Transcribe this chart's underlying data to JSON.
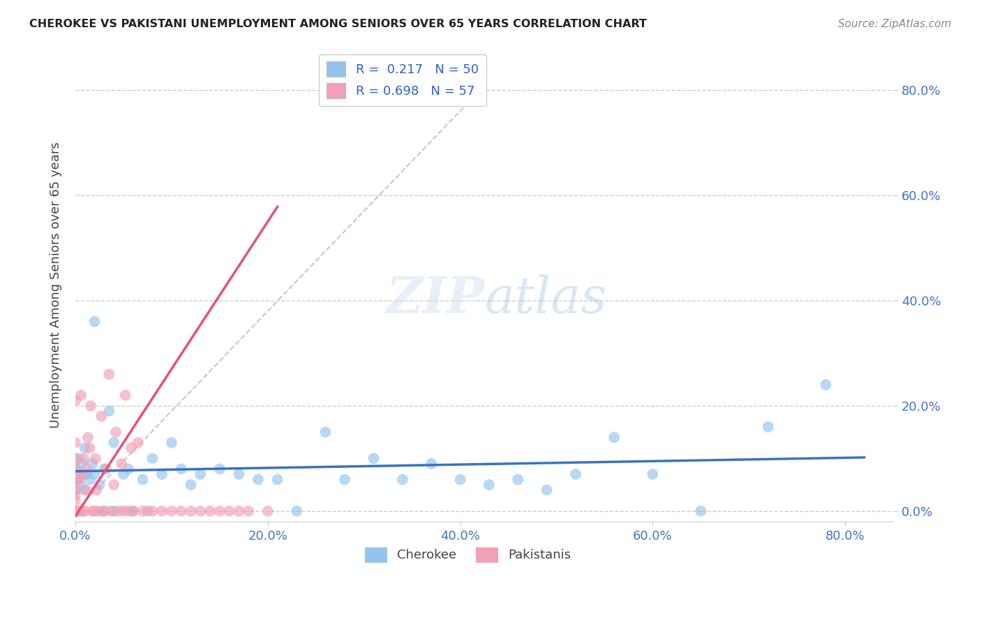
{
  "title": "CHEROKEE VS PAKISTANI UNEMPLOYMENT AMONG SENIORS OVER 65 YEARS CORRELATION CHART",
  "source": "Source: ZipAtlas.com",
  "ylabel": "Unemployment Among Seniors over 65 years",
  "xlim": [
    0.0,
    0.85
  ],
  "ylim": [
    -0.02,
    0.88
  ],
  "cherokee_color": "#93C4EE",
  "pakistani_color": "#F2A0B5",
  "cherokee_trend_color": "#3A72C4",
  "pakistani_trend_color": "#E8507A",
  "ref_line_color": "#C0C0C0",
  "cherokee_R": 0.217,
  "cherokee_N": 50,
  "pakistani_R": 0.698,
  "pakistani_N": 57,
  "background_color": "#ffffff",
  "grid_color": "#C8C8C8",
  "tick_color": "#4472c4",
  "left_tick_color": "#555555",
  "cherokee_x": [
    0.0,
    0.0,
    0.002,
    0.003,
    0.005,
    0.007,
    0.008,
    0.01,
    0.01,
    0.012,
    0.015,
    0.018,
    0.02,
    0.02,
    0.025,
    0.03,
    0.03,
    0.035,
    0.04,
    0.04,
    0.05,
    0.055,
    0.06,
    0.07,
    0.08,
    0.09,
    0.1,
    0.11,
    0.12,
    0.13,
    0.15,
    0.17,
    0.19,
    0.21,
    0.23,
    0.26,
    0.28,
    0.31,
    0.34,
    0.37,
    0.4,
    0.43,
    0.46,
    0.49,
    0.52,
    0.56,
    0.6,
    0.65,
    0.72,
    0.78
  ],
  "cherokee_y": [
    0.04,
    0.08,
    0.06,
    0.1,
    0.05,
    0.09,
    0.07,
    0.04,
    0.12,
    0.07,
    0.06,
    0.09,
    0.36,
    0.07,
    0.05,
    0.08,
    0.0,
    0.19,
    0.0,
    0.13,
    0.07,
    0.08,
    0.0,
    0.06,
    0.1,
    0.07,
    0.13,
    0.08,
    0.05,
    0.07,
    0.08,
    0.07,
    0.06,
    0.06,
    0.0,
    0.15,
    0.06,
    0.1,
    0.06,
    0.09,
    0.06,
    0.05,
    0.06,
    0.04,
    0.07,
    0.14,
    0.07,
    0.0,
    0.16,
    0.24
  ],
  "pakistani_x": [
    0.0,
    0.0,
    0.0,
    0.0,
    0.0,
    0.0,
    0.0,
    0.0,
    0.0,
    0.0,
    0.003,
    0.004,
    0.005,
    0.006,
    0.007,
    0.008,
    0.009,
    0.01,
    0.011,
    0.012,
    0.013,
    0.015,
    0.016,
    0.018,
    0.02,
    0.021,
    0.022,
    0.025,
    0.027,
    0.03,
    0.032,
    0.035,
    0.037,
    0.04,
    0.042,
    0.045,
    0.048,
    0.05,
    0.052,
    0.055,
    0.058,
    0.06,
    0.065,
    0.07,
    0.075,
    0.08,
    0.09,
    0.1,
    0.11,
    0.12,
    0.13,
    0.14,
    0.15,
    0.16,
    0.17,
    0.18,
    0.2
  ],
  "pakistani_y": [
    0.0,
    0.0,
    0.02,
    0.03,
    0.04,
    0.06,
    0.08,
    0.1,
    0.13,
    0.21,
    0.0,
    0.06,
    0.0,
    0.22,
    0.07,
    0.0,
    0.1,
    0.0,
    0.04,
    0.08,
    0.14,
    0.12,
    0.2,
    0.0,
    0.0,
    0.1,
    0.04,
    0.0,
    0.18,
    0.0,
    0.08,
    0.26,
    0.0,
    0.05,
    0.15,
    0.0,
    0.09,
    0.0,
    0.22,
    0.0,
    0.12,
    0.0,
    0.13,
    0.0,
    0.0,
    0.0,
    0.0,
    0.0,
    0.0,
    0.0,
    0.0,
    0.0,
    0.0,
    0.0,
    0.0,
    0.0,
    0.0
  ],
  "x_ticks": [
    0.0,
    0.2,
    0.4,
    0.6,
    0.8
  ],
  "y_ticks": [
    0.0,
    0.2,
    0.4,
    0.6,
    0.8
  ],
  "x_tick_labels": [
    "0.0%",
    "20.0%",
    "40.0%",
    "60.0%",
    "80.0%"
  ],
  "y_tick_labels": [
    "0.0%",
    "20.0%",
    "40.0%",
    "60.0%",
    "80.0%"
  ]
}
